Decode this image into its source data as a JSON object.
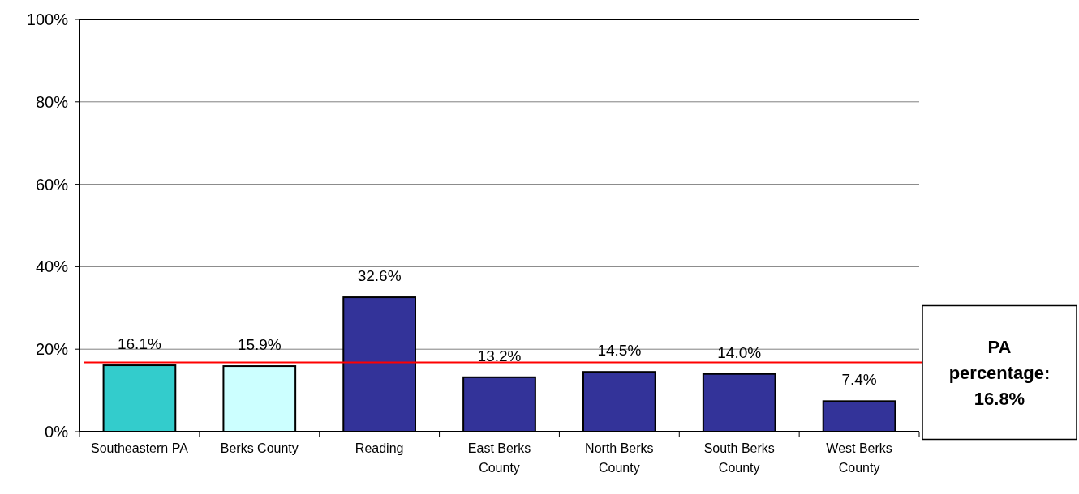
{
  "chart_data": {
    "type": "bar",
    "categories": [
      "Southeastern PA",
      "Berks County",
      "Reading",
      "East Berks County",
      "North Berks County",
      "South Berks County",
      "West Berks County"
    ],
    "values": [
      16.1,
      15.9,
      32.6,
      13.2,
      14.5,
      14.0,
      7.4
    ],
    "colors": [
      "#33cccc",
      "#ccffff",
      "#333399",
      "#333399",
      "#333399",
      "#333399",
      "#333399"
    ],
    "value_labels": [
      "16.1%",
      "15.9%",
      "32.6%",
      "13.2%",
      "14.5%",
      "14.0%",
      "7.4%"
    ],
    "ylim": [
      0,
      100
    ],
    "yticks": [
      {
        "value": 0,
        "label": "0%"
      },
      {
        "value": 20,
        "label": "20%"
      },
      {
        "value": 40,
        "label": "40%"
      },
      {
        "value": 60,
        "label": "60%"
      },
      {
        "value": 80,
        "label": "80%"
      },
      {
        "value": 100,
        "label": "100%"
      }
    ],
    "grid": "y",
    "ref_lines": [
      {
        "axis": "y",
        "value": 16.8,
        "label": "PA percentage: 16.8%",
        "color": "#ff0000"
      }
    ]
  }
}
